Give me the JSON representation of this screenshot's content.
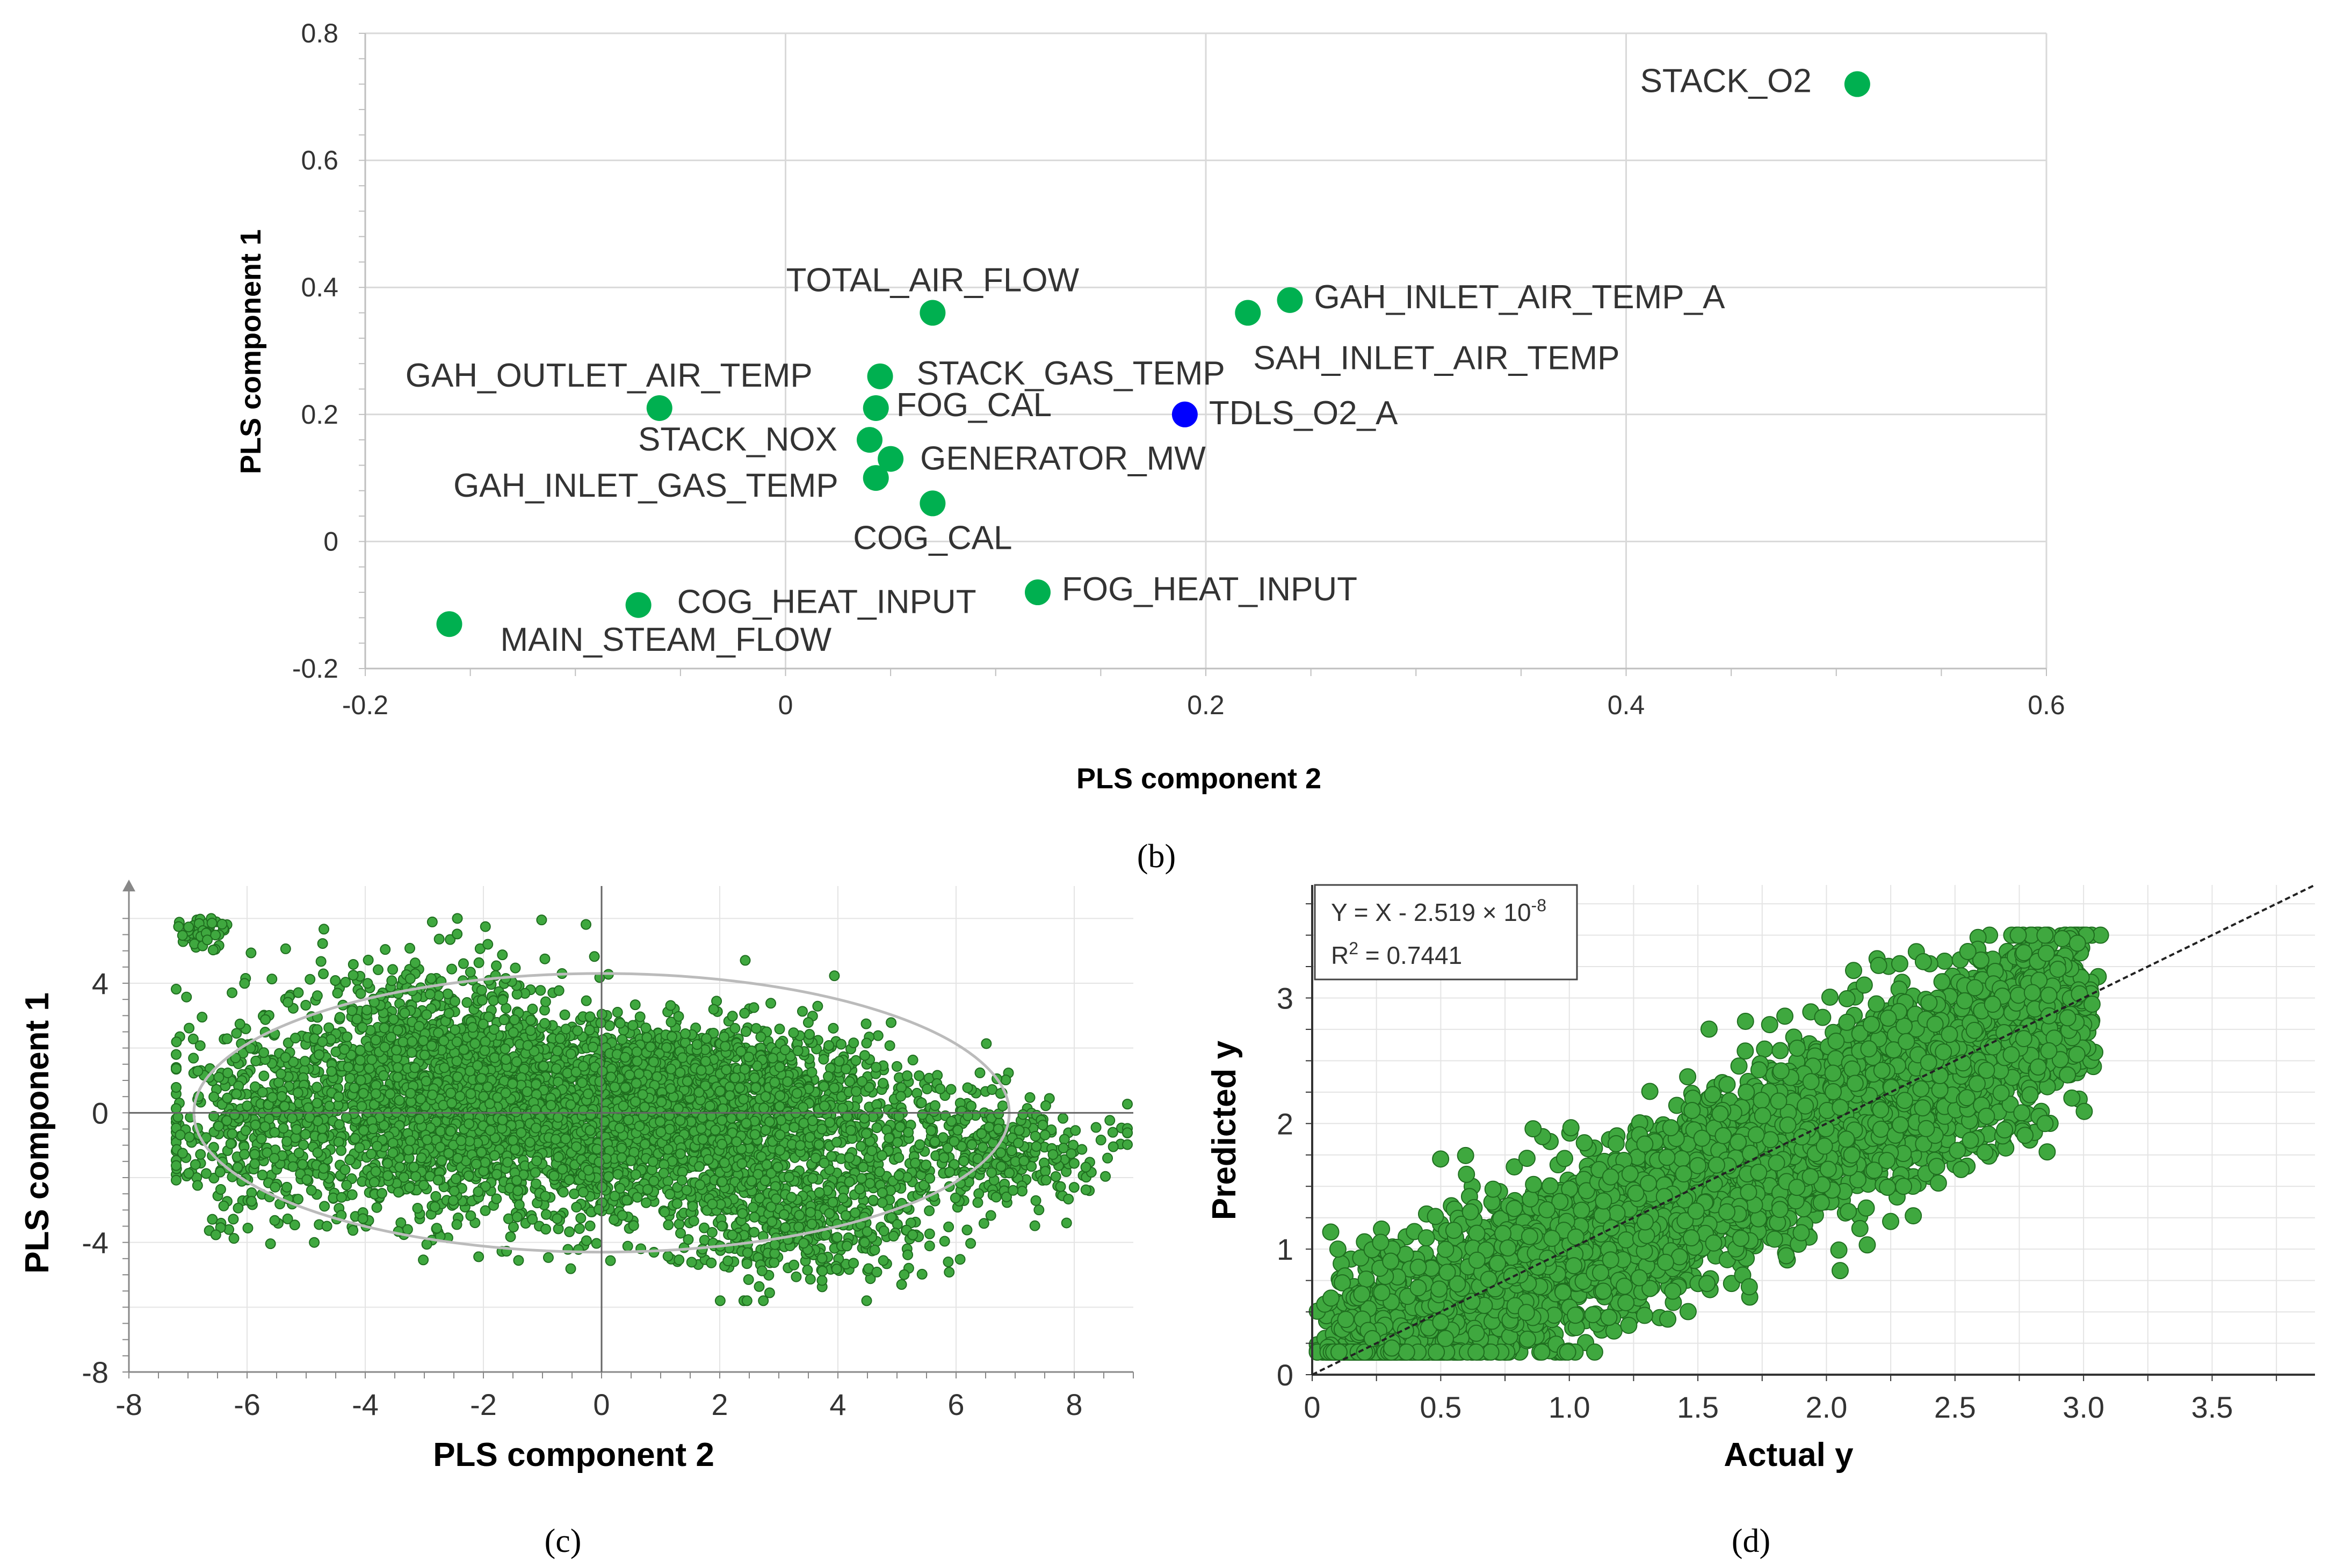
{
  "chart_data": [
    {
      "panel": "b",
      "type": "scatter",
      "caption": "(b)",
      "xlabel": "PLS component 2",
      "ylabel": "PLS component 1",
      "xlim": [
        -0.2,
        0.6
      ],
      "ylim": [
        -0.2,
        0.8
      ],
      "xticks": [
        "-0.2",
        "0",
        "0.2",
        "0.4",
        "0.6"
      ],
      "yticks": [
        "-0.2",
        "0",
        "0.2",
        "0.4",
        "0.6",
        "0.8"
      ],
      "grid": true,
      "colors": {
        "point": "#00b050",
        "highlight": "#0000ff"
      },
      "points": [
        {
          "label": "STACK_O2",
          "x": 0.51,
          "y": 0.72
        },
        {
          "label": "GAH_INLET_AIR_TEMP_A",
          "x": 0.24,
          "y": 0.38
        },
        {
          "label": "SAH_INLET_AIR_TEMP",
          "x": 0.22,
          "y": 0.36
        },
        {
          "label": "TOTAL_AIR_FLOW",
          "x": 0.07,
          "y": 0.36
        },
        {
          "label": "STACK_GAS_TEMP",
          "x": 0.045,
          "y": 0.26
        },
        {
          "label": "FOG_CAL",
          "x": 0.043,
          "y": 0.21
        },
        {
          "label": "GAH_OUTLET_AIR_TEMP",
          "x": -0.06,
          "y": 0.21
        },
        {
          "label": "TDLS_O2_A",
          "x": 0.19,
          "y": 0.2,
          "highlight": true
        },
        {
          "label": "STACK_NOX",
          "x": 0.04,
          "y": 0.16
        },
        {
          "label": "GENERATOR_MW",
          "x": 0.05,
          "y": 0.13
        },
        {
          "label": "GAH_INLET_GAS_TEMP",
          "x": 0.043,
          "y": 0.1
        },
        {
          "label": "COG_CAL",
          "x": 0.07,
          "y": 0.06
        },
        {
          "label": "FOG_HEAT_INPUT",
          "x": 0.12,
          "y": -0.08
        },
        {
          "label": "COG_HEAT_INPUT",
          "x": -0.07,
          "y": -0.1
        },
        {
          "label": "MAIN_STEAM_FLOW",
          "x": -0.16,
          "y": -0.13
        }
      ]
    },
    {
      "panel": "c",
      "type": "scatter",
      "caption": "(c)",
      "xlabel": "PLS component 2",
      "ylabel": "PLS component 1",
      "xlim": [
        -8,
        9
      ],
      "ylim": [
        -8,
        7
      ],
      "xticks": [
        "-8",
        "-6",
        "-4",
        "-2",
        "0",
        "2",
        "4",
        "6",
        "8"
      ],
      "yticks": [
        "-8",
        "-4",
        "0",
        "4"
      ],
      "grid": true,
      "confidence_ellipse": {
        "center": [
          0,
          0
        ],
        "semi_axis_x": 6.9,
        "semi_axis_y": 4.3
      },
      "colors": {
        "point": "#3fa83f",
        "point_edge": "#1f6e1f",
        "ellipse": "#bbbbbb"
      },
      "point_count_approx": 6000,
      "cloud": {
        "x_range": [
          -7.2,
          8.9
        ],
        "y_range": [
          -5.8,
          6.0
        ]
      }
    },
    {
      "panel": "d",
      "type": "scatter",
      "caption": "(d)",
      "xlabel": "Actual y",
      "ylabel": "Predicted y",
      "xlim": [
        0,
        3.9
      ],
      "ylim": [
        0,
        3.9
      ],
      "xticks": [
        "0",
        "0.5",
        "1.0",
        "1.5",
        "2.0",
        "2.5",
        "3.0",
        "3.5"
      ],
      "yticks": [
        "0",
        "1",
        "2",
        "3"
      ],
      "grid": true,
      "fit_line": {
        "slope": 1,
        "intercept": -2.519e-08
      },
      "equation": {
        "line1_prefix": "Y = X - 2.519 × 10",
        "line1_exp": "-8",
        "line2_prefix": "R",
        "line2_exp": "2",
        "line2_rest": " = 0.7441"
      },
      "colors": {
        "point": "#3fa83f",
        "point_edge": "#1f6e1f",
        "fit": "#222222"
      },
      "point_count_approx": 5000,
      "r_squared": 0.7441
    }
  ]
}
